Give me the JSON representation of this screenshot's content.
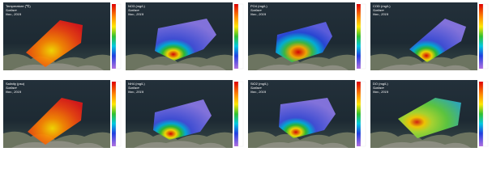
{
  "panels": [
    {
      "title": "Temperature (℃)",
      "depth": "Surface",
      "date": "Nov., 2019"
    },
    {
      "title": "NO3 (mg/L)",
      "depth": "Surface",
      "date": "Nov., 2019"
    },
    {
      "title": "PO4 (mg/L)",
      "depth": "Surface",
      "date": "Nov., 2019"
    },
    {
      "title": "COD (mg/L)",
      "depth": "Surface",
      "date": "Nov., 2019"
    },
    {
      "title": "Salinity (psu)",
      "depth": "Surface",
      "date": "Nov., 2019"
    },
    {
      "title": "NH4 (mg/L)",
      "depth": "Surface",
      "date": "Nov., 2019"
    },
    {
      "title": "SiO2 (mg/L)",
      "depth": "Surface",
      "date": "Nov., 2019"
    },
    {
      "title": "DO (mg/L)",
      "depth": "Surface",
      "date": "Nov., 2019"
    }
  ]
}
